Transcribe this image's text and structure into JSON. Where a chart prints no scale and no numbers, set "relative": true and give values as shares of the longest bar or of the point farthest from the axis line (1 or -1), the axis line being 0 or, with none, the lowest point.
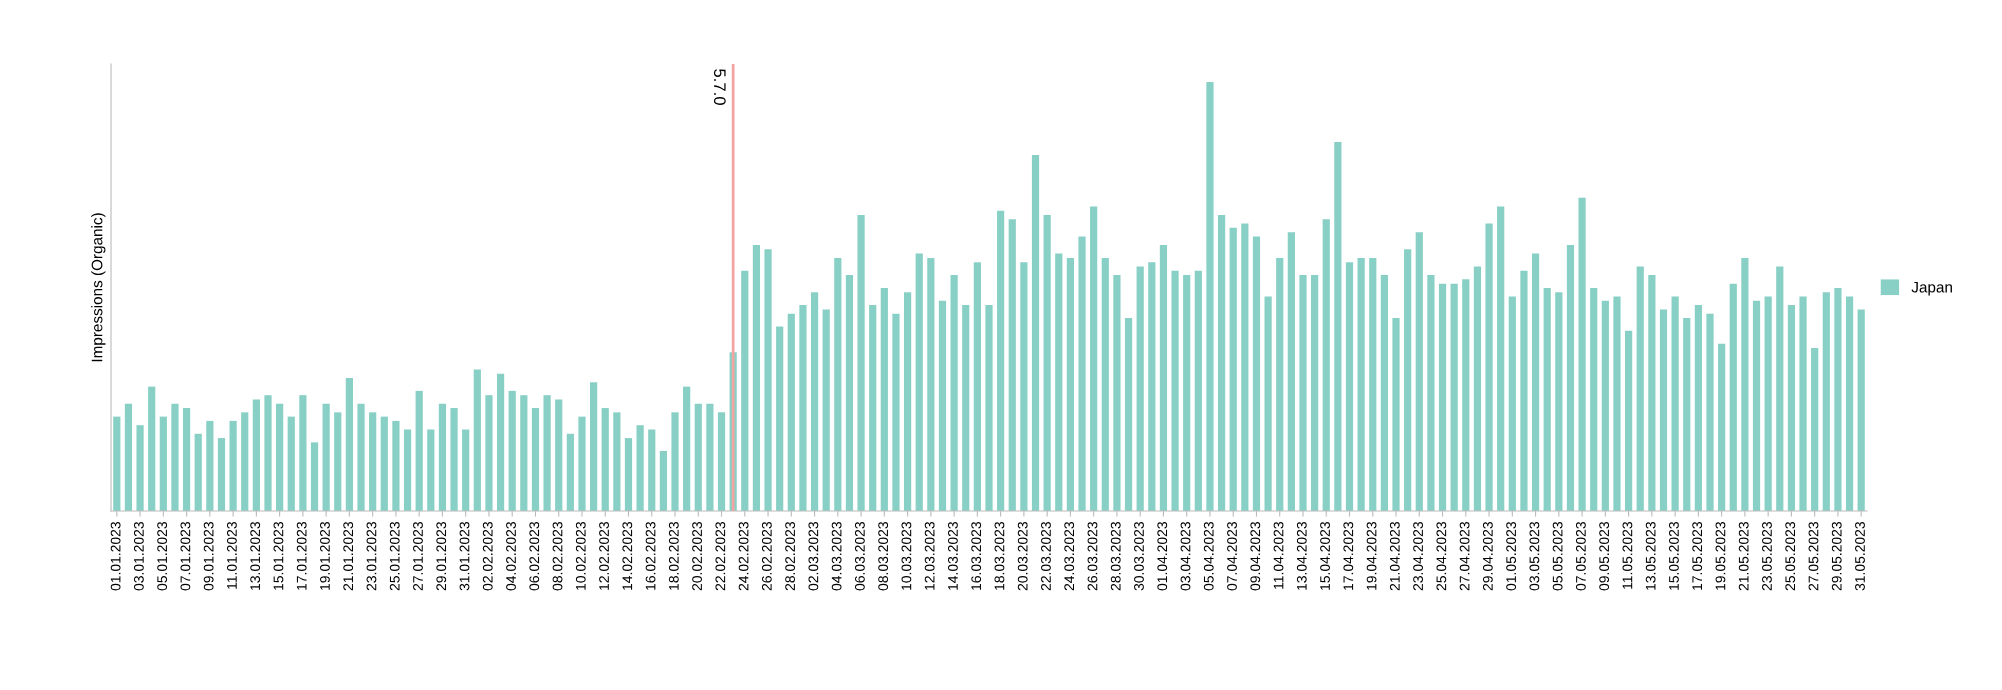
{
  "chart_data": {
    "type": "bar",
    "ylabel": "Impressions (Organic)",
    "relative": true,
    "legend": "right",
    "x": [
      "2023-01-01",
      "2023-01-02",
      "2023-01-03",
      "2023-01-04",
      "2023-01-05",
      "2023-01-06",
      "2023-01-07",
      "2023-01-08",
      "2023-01-09",
      "2023-01-10",
      "2023-01-11",
      "2023-01-12",
      "2023-01-13",
      "2023-01-14",
      "2023-01-15",
      "2023-01-16",
      "2023-01-17",
      "2023-01-18",
      "2023-01-19",
      "2023-01-20",
      "2023-01-21",
      "2023-01-22",
      "2023-01-23",
      "2023-01-24",
      "2023-01-25",
      "2023-01-26",
      "2023-01-27",
      "2023-01-28",
      "2023-01-29",
      "2023-01-30",
      "2023-01-31",
      "2023-02-01",
      "2023-02-02",
      "2023-02-03",
      "2023-02-04",
      "2023-02-05",
      "2023-02-06",
      "2023-02-07",
      "2023-02-08",
      "2023-02-09",
      "2023-02-10",
      "2023-02-11",
      "2023-02-12",
      "2023-02-13",
      "2023-02-14",
      "2023-02-15",
      "2023-02-16",
      "2023-02-17",
      "2023-02-18",
      "2023-02-19",
      "2023-02-20",
      "2023-02-21",
      "2023-02-22",
      "2023-02-23",
      "2023-02-24",
      "2023-02-25",
      "2023-02-26",
      "2023-02-27",
      "2023-02-28",
      "2023-03-01",
      "2023-03-02",
      "2023-03-03",
      "2023-03-04",
      "2023-03-05",
      "2023-03-06",
      "2023-03-07",
      "2023-03-08",
      "2023-03-09",
      "2023-03-10",
      "2023-03-11",
      "2023-03-12",
      "2023-03-13",
      "2023-03-14",
      "2023-03-15",
      "2023-03-16",
      "2023-03-17",
      "2023-03-18",
      "2023-03-19",
      "2023-03-20",
      "2023-03-21",
      "2023-03-22",
      "2023-03-23",
      "2023-03-24",
      "2023-03-25",
      "2023-03-26",
      "2023-03-27",
      "2023-03-28",
      "2023-03-29",
      "2023-03-30",
      "2023-03-31",
      "2023-04-01",
      "2023-04-02",
      "2023-04-03",
      "2023-04-04",
      "2023-04-05",
      "2023-04-06",
      "2023-04-07",
      "2023-04-08",
      "2023-04-09",
      "2023-04-10",
      "2023-04-11",
      "2023-04-12",
      "2023-04-13",
      "2023-04-14",
      "2023-04-15",
      "2023-04-16",
      "2023-04-17",
      "2023-04-18",
      "2023-04-19",
      "2023-04-20",
      "2023-04-21",
      "2023-04-22",
      "2023-04-23",
      "2023-04-24",
      "2023-04-25",
      "2023-04-26",
      "2023-04-27",
      "2023-04-28",
      "2023-04-29",
      "2023-04-30",
      "2023-05-01",
      "2023-05-02",
      "2023-05-03",
      "2023-05-04",
      "2023-05-05",
      "2023-05-06",
      "2023-05-07",
      "2023-05-08",
      "2023-05-09",
      "2023-05-10",
      "2023-05-11",
      "2023-05-12",
      "2023-05-13",
      "2023-05-14",
      "2023-05-15",
      "2023-05-16",
      "2023-05-17",
      "2023-05-18",
      "2023-05-19",
      "2023-05-20",
      "2023-05-21",
      "2023-05-22",
      "2023-05-23",
      "2023-05-24",
      "2023-05-25",
      "2023-05-26",
      "2023-05-27",
      "2023-05-28",
      "2023-05-29",
      "2023-05-30",
      "2023-05-31"
    ],
    "xlim": [
      "2022-12-31T12:00",
      "2023-05-31T12:00"
    ],
    "xticks": [
      {
        "value": "2023-01-01",
        "label": "01.01.2023"
      },
      {
        "value": "2023-01-03",
        "label": "03.01.2023"
      },
      {
        "value": "2023-01-05",
        "label": "05.01.2023"
      },
      {
        "value": "2023-01-07",
        "label": "07.01.2023"
      },
      {
        "value": "2023-01-09",
        "label": "09.01.2023"
      },
      {
        "value": "2023-01-11",
        "label": "11.01.2023"
      },
      {
        "value": "2023-01-13",
        "label": "13.01.2023"
      },
      {
        "value": "2023-01-15",
        "label": "15.01.2023"
      },
      {
        "value": "2023-01-17",
        "label": "17.01.2023"
      },
      {
        "value": "2023-01-19",
        "label": "19.01.2023"
      },
      {
        "value": "2023-01-21",
        "label": "21.01.2023"
      },
      {
        "value": "2023-01-23",
        "label": "23.01.2023"
      },
      {
        "value": "2023-01-25",
        "label": "25.01.2023"
      },
      {
        "value": "2023-01-27",
        "label": "27.01.2023"
      },
      {
        "value": "2023-01-29",
        "label": "29.01.2023"
      },
      {
        "value": "2023-01-31",
        "label": "31.01.2023"
      },
      {
        "value": "2023-02-02",
        "label": "02.02.2023"
      },
      {
        "value": "2023-02-04",
        "label": "04.02.2023"
      },
      {
        "value": "2023-02-06",
        "label": "06.02.2023"
      },
      {
        "value": "2023-02-08",
        "label": "08.02.2023"
      },
      {
        "value": "2023-02-10",
        "label": "10.02.2023"
      },
      {
        "value": "2023-02-12",
        "label": "12.02.2023"
      },
      {
        "value": "2023-02-14",
        "label": "14.02.2023"
      },
      {
        "value": "2023-02-16",
        "label": "16.02.2023"
      },
      {
        "value": "2023-02-18",
        "label": "18.02.2023"
      },
      {
        "value": "2023-02-20",
        "label": "20.02.2023"
      },
      {
        "value": "2023-02-22",
        "label": "22.02.2023"
      },
      {
        "value": "2023-02-24",
        "label": "24.02.2023"
      },
      {
        "value": "2023-02-26",
        "label": "26.02.2023"
      },
      {
        "value": "2023-02-28",
        "label": "28.02.2023"
      },
      {
        "value": "2023-03-02",
        "label": "02.03.2023"
      },
      {
        "value": "2023-03-04",
        "label": "04.03.2023"
      },
      {
        "value": "2023-03-06",
        "label": "06.03.2023"
      },
      {
        "value": "2023-03-08",
        "label": "08.03.2023"
      },
      {
        "value": "2023-03-10",
        "label": "10.03.2023"
      },
      {
        "value": "2023-03-12",
        "label": "12.03.2023"
      },
      {
        "value": "2023-03-14",
        "label": "14.03.2023"
      },
      {
        "value": "2023-03-16",
        "label": "16.03.2023"
      },
      {
        "value": "2023-03-18",
        "label": "18.03.2023"
      },
      {
        "value": "2023-03-20",
        "label": "20.03.2023"
      },
      {
        "value": "2023-03-22",
        "label": "22.03.2023"
      },
      {
        "value": "2023-03-24",
        "label": "24.03.2023"
      },
      {
        "value": "2023-03-26",
        "label": "26.03.2023"
      },
      {
        "value": "2023-03-28",
        "label": "28.03.2023"
      },
      {
        "value": "2023-03-30",
        "label": "30.03.2023"
      },
      {
        "value": "2023-04-01",
        "label": "01.04.2023"
      },
      {
        "value": "2023-04-03",
        "label": "03.04.2023"
      },
      {
        "value": "2023-04-05",
        "label": "05.04.2023"
      },
      {
        "value": "2023-04-07",
        "label": "07.04.2023"
      },
      {
        "value": "2023-04-09",
        "label": "09.04.2023"
      },
      {
        "value": "2023-04-11",
        "label": "11.04.2023"
      },
      {
        "value": "2023-04-13",
        "label": "13.04.2023"
      },
      {
        "value": "2023-04-15",
        "label": "15.04.2023"
      },
      {
        "value": "2023-04-17",
        "label": "17.04.2023"
      },
      {
        "value": "2023-04-19",
        "label": "19.04.2023"
      },
      {
        "value": "2023-04-21",
        "label": "21.04.2023"
      },
      {
        "value": "2023-04-23",
        "label": "23.04.2023"
      },
      {
        "value": "2023-04-25",
        "label": "25.04.2023"
      },
      {
        "value": "2023-04-27",
        "label": "27.04.2023"
      },
      {
        "value": "2023-04-29",
        "label": "29.04.2023"
      },
      {
        "value": "2023-05-01",
        "label": "01.05.2023"
      },
      {
        "value": "2023-05-03",
        "label": "03.05.2023"
      },
      {
        "value": "2023-05-05",
        "label": "05.05.2023"
      },
      {
        "value": "2023-05-07",
        "label": "07.05.2023"
      },
      {
        "value": "2023-05-09",
        "label": "09.05.2023"
      },
      {
        "value": "2023-05-11",
        "label": "11.05.2023"
      },
      {
        "value": "2023-05-13",
        "label": "13.05.2023"
      },
      {
        "value": "2023-05-15",
        "label": "15.05.2023"
      },
      {
        "value": "2023-05-17",
        "label": "17.05.2023"
      },
      {
        "value": "2023-05-19",
        "label": "19.05.2023"
      },
      {
        "value": "2023-05-21",
        "label": "21.05.2023"
      },
      {
        "value": "2023-05-23",
        "label": "23.05.2023"
      },
      {
        "value": "2023-05-25",
        "label": "25.05.2023"
      },
      {
        "value": "2023-05-27",
        "label": "27.05.2023"
      },
      {
        "value": "2023-05-29",
        "label": "29.05.2023"
      },
      {
        "value": "2023-05-31",
        "label": "31.05.2023"
      }
    ],
    "series": [
      {
        "name": "Japan",
        "color": "#88d0c6",
        "values": [
          0.22,
          0.25,
          0.2,
          0.29,
          0.22,
          0.25,
          0.24,
          0.18,
          0.21,
          0.17,
          0.21,
          0.23,
          0.26,
          0.27,
          0.25,
          0.22,
          0.27,
          0.16,
          0.25,
          0.23,
          0.31,
          0.25,
          0.23,
          0.22,
          0.21,
          0.19,
          0.28,
          0.19,
          0.25,
          0.24,
          0.19,
          0.33,
          0.27,
          0.32,
          0.28,
          0.27,
          0.24,
          0.27,
          0.26,
          0.18,
          0.22,
          0.3,
          0.24,
          0.23,
          0.17,
          0.2,
          0.19,
          0.14,
          0.23,
          0.29,
          0.25,
          0.25,
          0.23,
          0.37,
          0.56,
          0.62,
          0.61,
          0.43,
          0.46,
          0.48,
          0.51,
          0.47,
          0.59,
          0.55,
          0.69,
          0.48,
          0.52,
          0.46,
          0.51,
          0.6,
          0.59,
          0.49,
          0.55,
          0.48,
          0.58,
          0.48,
          0.7,
          0.68,
          0.58,
          0.83,
          0.69,
          0.6,
          0.59,
          0.64,
          0.71,
          0.59,
          0.55,
          0.45,
          0.57,
          0.58,
          0.62,
          0.56,
          0.55,
          0.56,
          1,
          0.69,
          0.66,
          0.67,
          0.64,
          0.5,
          0.59,
          0.65,
          0.55,
          0.55,
          0.68,
          0.86,
          0.58,
          0.59,
          0.59,
          0.55,
          0.45,
          0.61,
          0.65,
          0.55,
          0.53,
          0.53,
          0.54,
          0.57,
          0.67,
          0.71,
          0.5,
          0.56,
          0.6,
          0.52,
          0.51,
          0.62,
          0.73,
          0.52,
          0.49,
          0.5,
          0.42,
          0.57,
          0.55,
          0.47,
          0.5,
          0.45,
          0.48,
          0.46,
          0.39,
          0.53,
          0.59,
          0.49,
          0.5,
          0.57,
          0.48,
          0.5,
          0.38,
          0.51,
          0.52,
          0.5,
          0.47
        ]
      }
    ],
    "ref_lines": [
      {
        "axis": "x",
        "value": "2023-02-23",
        "label": "5.7.0",
        "color": "#f4a3a3",
        "line_style": "solid"
      }
    ]
  }
}
